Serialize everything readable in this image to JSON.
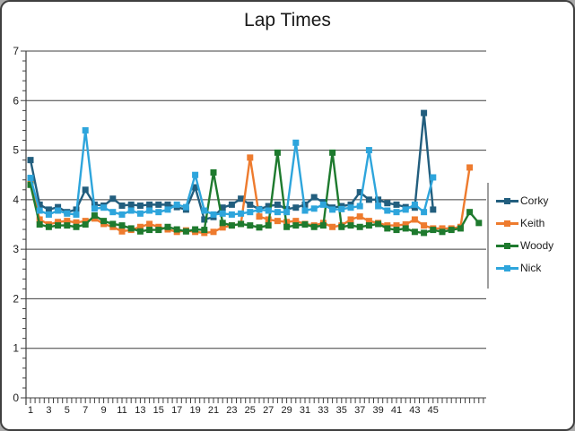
{
  "window": {
    "background_color": "#a9a9a9",
    "frame_border_color": "#3f3f3f",
    "canvas_color": "#ffffff"
  },
  "chart_data": {
    "type": "line",
    "title": "Lap Times",
    "xlabel": "",
    "ylabel": "",
    "ylim": [
      0,
      7
    ],
    "yticks": [
      0,
      1,
      2,
      3,
      4,
      5,
      6,
      7
    ],
    "y_minor_tick_step": 0.2,
    "x_minor_tick_step": 0.5,
    "xtick_labels": [
      "1",
      "3",
      "5",
      "7",
      "9",
      "11",
      "13",
      "15",
      "17",
      "19",
      "21",
      "23",
      "25",
      "27",
      "29",
      "31",
      "33",
      "35",
      "37",
      "39",
      "41",
      "43",
      "45"
    ],
    "grid": "horizontal",
    "grid_color": "#3f3f3f",
    "axis_color": "#3f3f3f",
    "tick_label_color": "#1c1c1c",
    "legend_position": "right",
    "marker": "square",
    "series": [
      {
        "name": "Corky",
        "color": "#225E7E",
        "values": [
          4.8,
          3.9,
          3.8,
          3.85,
          3.75,
          3.8,
          4.2,
          3.9,
          3.88,
          4.02,
          3.88,
          3.9,
          3.88,
          3.9,
          3.9,
          3.9,
          3.85,
          3.8,
          4.25,
          3.6,
          3.65,
          3.84,
          3.9,
          4.02,
          3.9,
          3.81,
          3.87,
          3.9,
          3.81,
          3.84,
          3.9,
          4.05,
          3.95,
          3.84,
          3.87,
          3.9,
          4.15,
          4.0,
          4.0,
          3.93,
          3.9,
          3.85,
          3.84,
          5.75,
          3.8
        ]
      },
      {
        "name": "Keith",
        "color": "#EE7B2E",
        "values": [
          4.35,
          3.6,
          3.5,
          3.55,
          3.57,
          3.54,
          3.57,
          3.62,
          3.51,
          3.45,
          3.36,
          3.39,
          3.45,
          3.51,
          3.45,
          3.4,
          3.35,
          3.38,
          3.35,
          3.33,
          3.35,
          3.44,
          3.48,
          3.51,
          4.85,
          3.66,
          3.6,
          3.57,
          3.55,
          3.57,
          3.51,
          3.48,
          3.53,
          3.45,
          3.48,
          3.6,
          3.66,
          3.57,
          3.53,
          3.48,
          3.48,
          3.5,
          3.6,
          3.48,
          3.42,
          3.42,
          3.42,
          3.45,
          4.65
        ]
      },
      {
        "name": "Woody",
        "color": "#1E7A2E",
        "values": [
          4.3,
          3.5,
          3.45,
          3.48,
          3.48,
          3.45,
          3.5,
          3.68,
          3.57,
          3.51,
          3.48,
          3.42,
          3.36,
          3.39,
          3.39,
          3.45,
          3.4,
          3.36,
          3.4,
          3.39,
          4.55,
          3.53,
          3.48,
          3.51,
          3.48,
          3.44,
          3.48,
          4.95,
          3.45,
          3.48,
          3.5,
          3.45,
          3.48,
          4.95,
          3.45,
          3.48,
          3.45,
          3.48,
          3.51,
          3.42,
          3.39,
          3.42,
          3.35,
          3.33,
          3.39,
          3.35,
          3.39,
          3.42,
          3.75,
          3.53
        ]
      },
      {
        "name": "Nick",
        "color": "#2EA5DC",
        "values": [
          4.44,
          3.78,
          3.7,
          3.78,
          3.72,
          3.7,
          5.4,
          3.82,
          3.84,
          3.75,
          3.7,
          3.78,
          3.72,
          3.78,
          3.75,
          3.8,
          3.9,
          3.85,
          4.5,
          3.78,
          3.7,
          3.72,
          3.7,
          3.72,
          3.75,
          3.8,
          3.78,
          3.75,
          3.75,
          5.15,
          3.78,
          3.82,
          3.9,
          3.8,
          3.81,
          3.84,
          3.87,
          5.0,
          3.87,
          3.78,
          3.75,
          3.8,
          3.9,
          3.75,
          4.45
        ]
      }
    ]
  }
}
